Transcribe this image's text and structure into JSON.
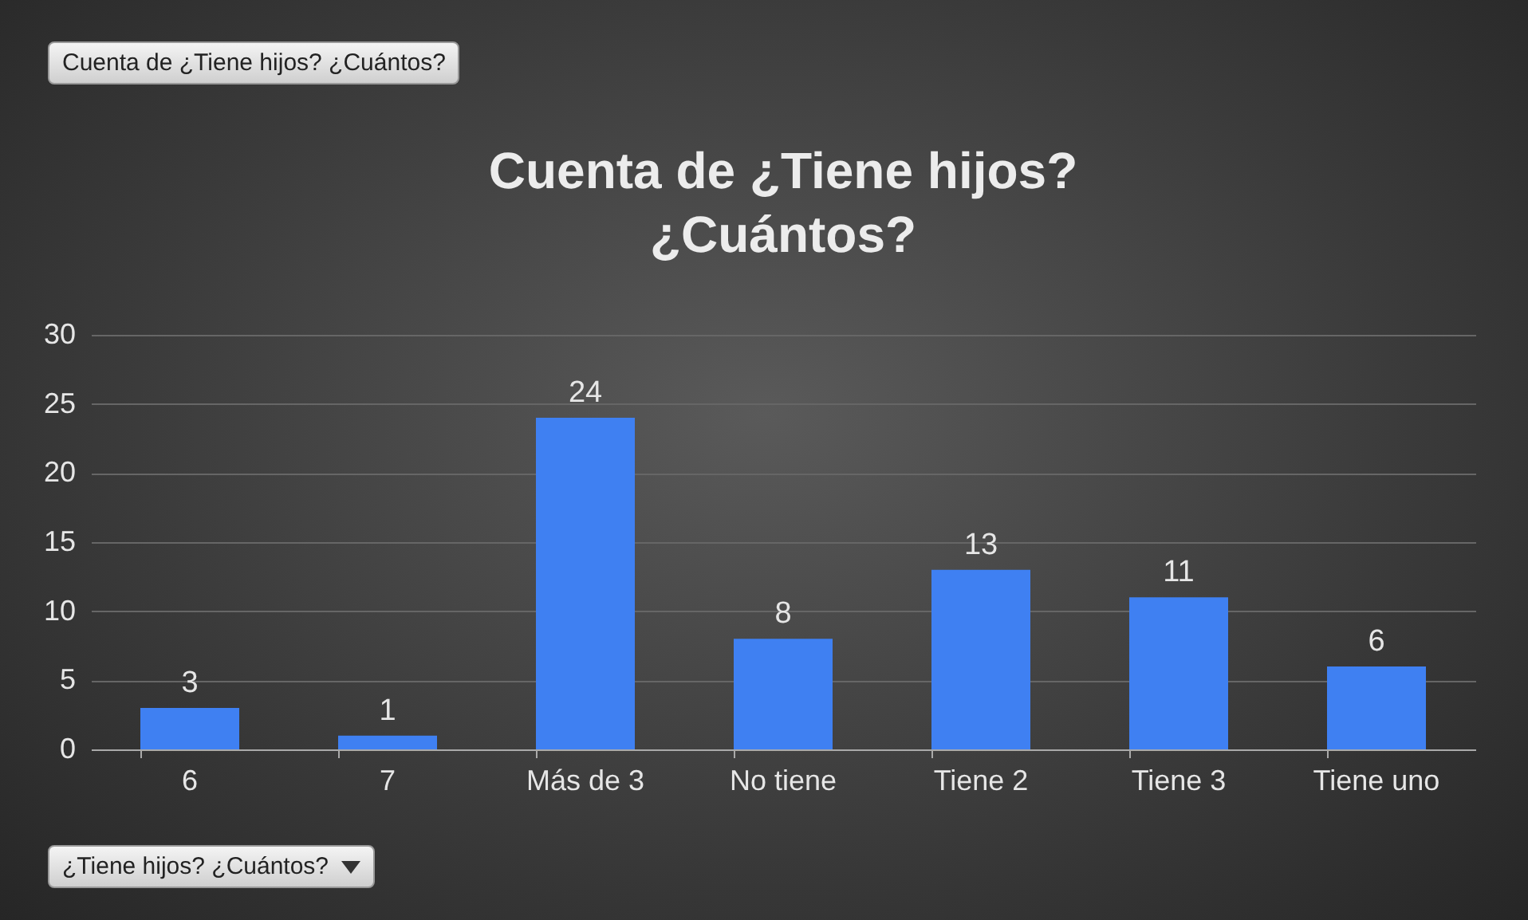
{
  "chart_data": {
    "type": "bar",
    "title": "Cuenta de ¿Tiene hijos? ¿Cuántos?",
    "categories": [
      "6",
      "7",
      "Más de 3",
      "No tiene",
      "Tiene 2",
      "Tiene 3",
      "Tiene uno"
    ],
    "values": [
      3,
      1,
      24,
      8,
      13,
      11,
      6
    ],
    "color": "#3f80f2",
    "ylim": [
      0,
      30
    ],
    "yticks": [
      0,
      5,
      10,
      15,
      20,
      25,
      30
    ],
    "grid": "y",
    "data_labels": true,
    "annotations": [
      "Cuenta de ¿Tiene hijos? ¿Cuántos?",
      "¿Tiene hijos? ¿Cuántos?"
    ]
  }
}
